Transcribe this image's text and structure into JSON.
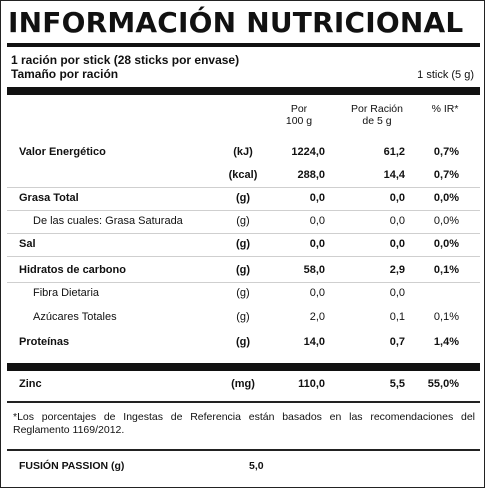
{
  "title": "INFORMACIÓN NUTRICIONAL",
  "serving": {
    "line1": "1 ración por stick (28 sticks por envase)",
    "line2_label": "Tamaño por ración",
    "line2_value": "1 stick (5 g)"
  },
  "headers": {
    "per100": [
      "Por",
      "100 g"
    ],
    "per5": [
      "Por Ración",
      "de 5 g"
    ],
    "ir": "% IR*"
  },
  "rows": [
    {
      "name": "Valor Energético",
      "unit": "(kJ)",
      "per100": "1224,0",
      "per5": "61,2",
      "ir": "0,7%",
      "bold": true
    },
    {
      "name": "",
      "unit": "(kcal)",
      "per100": "288,0",
      "per5": "14,4",
      "ir": "0,7%",
      "bold": true
    },
    {
      "name": "Grasa Total",
      "unit": "(g)",
      "per100": "0,0",
      "per5": "0,0",
      "ir": "0,0%",
      "bold": true
    },
    {
      "name": "De las cuales: Grasa Saturada",
      "unit": "(g)",
      "per100": "0,0",
      "per5": "0,0",
      "ir": "0,0%",
      "bold": false
    },
    {
      "name": "Sal",
      "unit": "(g)",
      "per100": "0,0",
      "per5": "0,0",
      "ir": "0,0%",
      "bold": true
    },
    {
      "name": "Hidratos de carbono",
      "unit": "(g)",
      "per100": "58,0",
      "per5": "2,9",
      "ir": "0,1%",
      "bold": true
    },
    {
      "name": "Fibra Dietaria",
      "unit": "(g)",
      "per100": "0,0",
      "per5": "0,0",
      "ir": "",
      "bold": false
    },
    {
      "name": "Azúcares Totales",
      "unit": "(g)",
      "per100": "2,0",
      "per5": "0,1",
      "ir": "0,1%",
      "bold": false
    },
    {
      "name": "Proteínas",
      "unit": "(g)",
      "per100": "14,0",
      "per5": "0,7",
      "ir": "1,4%",
      "bold": true
    }
  ],
  "zinc": {
    "name": "Zinc",
    "unit": "(mg)",
    "per100": "110,0",
    "per5": "5,5",
    "ir": "55,0%"
  },
  "footnote": "*Los porcentajes de Ingestas de Referencia están basados en las recomendaciones del Reglamento 1169/2012.",
  "extra": {
    "label": "FUSIÓN PASSION (g)",
    "value": "5,0"
  }
}
